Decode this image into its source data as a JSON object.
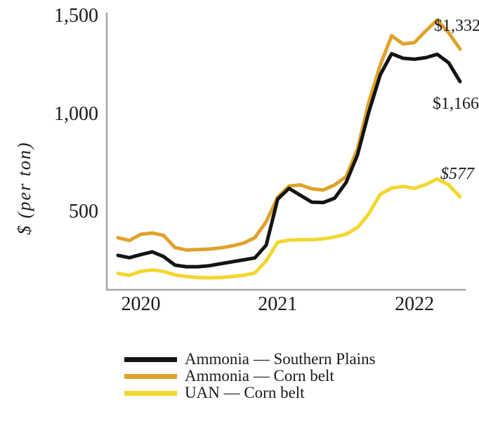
{
  "chart_data": {
    "type": "line",
    "title": "",
    "xlabel": "",
    "ylabel": "$ (per ton)",
    "y_ticks": [
      1500,
      1000,
      500
    ],
    "y_tick_labels": [
      "1,500",
      "1,000",
      "500"
    ],
    "ylim": [
      100,
      1520
    ],
    "grid": false,
    "legend_position": "bottom-left",
    "x": [
      "Nov 2019",
      "Dec 2019",
      "Jan 2020",
      "Feb 2020",
      "Mar 2020",
      "Apr 2020",
      "May 2020",
      "Jun 2020",
      "Jul 2020",
      "Aug 2020",
      "Sep 2020",
      "Oct 2020",
      "Nov 2020",
      "Dec 2020",
      "Jan 2021",
      "Feb 2021",
      "Mar 2021",
      "Apr 2021",
      "May 2021",
      "Jun 2021",
      "Jul 2021",
      "Aug 2021",
      "Sep 2021",
      "Oct 2021",
      "Nov 2021",
      "Dec 2021",
      "Jan 2022",
      "Feb 2022",
      "Mar 2022",
      "Apr 2022",
      "May 2022"
    ],
    "x_ticks": [
      {
        "label": "2020",
        "month_index": 2
      },
      {
        "label": "2021",
        "month_index": 14
      },
      {
        "label": "2022",
        "month_index": 26
      }
    ],
    "series": [
      {
        "name": "Ammonia — Southern Plains",
        "color": "#141414",
        "end_label": "$1,166",
        "end_value": 1166,
        "values": [
          278,
          266,
          282,
          296,
          272,
          228,
          220,
          220,
          225,
          235,
          245,
          255,
          265,
          330,
          565,
          620,
          585,
          550,
          548,
          570,
          650,
          790,
          1010,
          1200,
          1308,
          1285,
          1280,
          1288,
          1305,
          1262,
          1166
        ]
      },
      {
        "name": "Ammonia — Corn belt",
        "color": "#E0A22A",
        "end_label": "$1,332",
        "end_value": 1332,
        "values": [
          368,
          354,
          386,
          392,
          380,
          318,
          305,
          308,
          310,
          316,
          326,
          340,
          368,
          450,
          575,
          632,
          638,
          618,
          612,
          638,
          680,
          820,
          1060,
          1250,
          1400,
          1358,
          1365,
          1425,
          1480,
          1415,
          1332
        ]
      },
      {
        "name": "UAN — Corn belt",
        "color": "#F2D72E",
        "end_label": "$577",
        "end_value": 577,
        "values": [
          186,
          176,
          196,
          204,
          196,
          178,
          170,
          165,
          163,
          165,
          170,
          176,
          188,
          250,
          345,
          356,
          358,
          358,
          362,
          372,
          386,
          420,
          490,
          590,
          622,
          630,
          620,
          640,
          668,
          638,
          577
        ]
      }
    ],
    "axis_color": "#A6A6A6"
  }
}
